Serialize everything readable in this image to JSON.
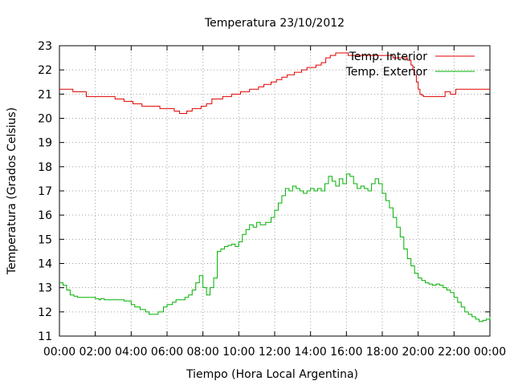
{
  "chart_data": {
    "type": "line",
    "title": "Temperatura 23/10/2012",
    "xlabel": "Tiempo (Hora Local Argentina)",
    "ylabel": "Temperatura (Grados Celsius)",
    "x_unit": "hours",
    "xlim": [
      0,
      24
    ],
    "ylim": [
      11,
      23
    ],
    "x_tick_labels": [
      "00:00",
      "02:00",
      "04:00",
      "06:00",
      "08:00",
      "10:00",
      "12:00",
      "14:00",
      "16:00",
      "18:00",
      "20:00",
      "22:00",
      "00:00"
    ],
    "y_ticks": [
      11,
      12,
      13,
      14,
      15,
      16,
      17,
      18,
      19,
      20,
      21,
      22,
      23
    ],
    "grid": true,
    "legend_position": "top-right",
    "series": [
      {
        "name": "Temp. Interior",
        "color": "#e00000",
        "x": [
          0,
          0.7,
          0.75,
          1.4,
          1.5,
          3.0,
          3.1,
          3.5,
          3.6,
          4.0,
          4.1,
          4.5,
          4.6,
          5.5,
          5.6,
          6.3,
          6.4,
          6.6,
          6.7,
          7.0,
          7.1,
          7.3,
          7.4,
          7.8,
          7.9,
          8.1,
          8.2,
          8.4,
          8.5,
          9.0,
          9.1,
          9.5,
          9.6,
          10.0,
          10.1,
          10.5,
          10.6,
          11.0,
          11.1,
          11.3,
          11.4,
          11.7,
          11.8,
          12.0,
          12.1,
          12.3,
          12.4,
          12.6,
          12.7,
          13.0,
          13.1,
          13.4,
          13.5,
          13.7,
          13.8,
          14.2,
          14.3,
          14.5,
          14.6,
          14.8,
          14.85,
          15.0,
          15.1,
          15.3,
          15.4,
          16.0,
          16.1,
          18.5,
          18.6,
          19.3,
          19.4,
          19.5,
          19.6,
          19.7,
          19.8,
          19.9,
          20.0,
          20.1,
          20.2,
          20.3,
          20.4,
          21.4,
          21.5,
          21.7,
          21.8,
          22.0,
          22.1,
          22.2,
          22.3,
          24.0
        ],
        "values": [
          21.2,
          21.2,
          21.1,
          21.1,
          20.9,
          20.9,
          20.8,
          20.8,
          20.7,
          20.7,
          20.6,
          20.6,
          20.5,
          20.5,
          20.4,
          20.4,
          20.3,
          20.3,
          20.2,
          20.2,
          20.3,
          20.3,
          20.4,
          20.4,
          20.5,
          20.5,
          20.6,
          20.6,
          20.8,
          20.8,
          20.9,
          20.9,
          21.0,
          21.0,
          21.1,
          21.1,
          21.2,
          21.2,
          21.3,
          21.3,
          21.4,
          21.4,
          21.5,
          21.5,
          21.6,
          21.6,
          21.7,
          21.7,
          21.8,
          21.8,
          21.9,
          21.9,
          22.0,
          22.0,
          22.1,
          22.1,
          22.2,
          22.2,
          22.3,
          22.3,
          22.5,
          22.5,
          22.6,
          22.6,
          22.7,
          22.7,
          22.6,
          22.6,
          22.5,
          22.5,
          22.4,
          22.4,
          22.2,
          22.0,
          21.8,
          21.5,
          21.2,
          21.0,
          20.95,
          20.9,
          20.9,
          20.9,
          21.1,
          21.1,
          21.0,
          21.0,
          21.2,
          21.2,
          21.2,
          21.2
        ]
      },
      {
        "name": "Temp. Exterior",
        "color": "#00b000",
        "x": [
          0,
          0.2,
          0.4,
          0.6,
          0.8,
          1.0,
          1.5,
          2.0,
          2.2,
          2.3,
          2.5,
          3.0,
          3.5,
          3.6,
          4.0,
          4.2,
          4.5,
          4.8,
          5.0,
          5.2,
          5.5,
          5.8,
          6.0,
          6.3,
          6.5,
          6.8,
          7.0,
          7.2,
          7.4,
          7.6,
          7.8,
          8.0,
          8.2,
          8.4,
          8.6,
          8.8,
          9.0,
          9.2,
          9.4,
          9.6,
          9.8,
          10.0,
          10.2,
          10.4,
          10.6,
          10.8,
          11.0,
          11.2,
          11.5,
          11.8,
          12.0,
          12.2,
          12.4,
          12.6,
          12.8,
          13.0,
          13.2,
          13.4,
          13.6,
          13.8,
          14.0,
          14.2,
          14.4,
          14.6,
          14.8,
          15.0,
          15.2,
          15.4,
          15.6,
          15.8,
          16.0,
          16.2,
          16.4,
          16.6,
          16.8,
          17.0,
          17.2,
          17.4,
          17.6,
          17.8,
          18.0,
          18.2,
          18.4,
          18.6,
          18.8,
          19.0,
          19.2,
          19.4,
          19.6,
          19.8,
          20.0,
          20.2,
          20.4,
          20.6,
          20.8,
          21.0,
          21.2,
          21.4,
          21.6,
          21.8,
          22.0,
          22.2,
          22.4,
          22.6,
          22.8,
          23.0,
          23.2,
          23.4,
          23.6,
          23.8,
          24.0
        ],
        "values": [
          13.2,
          13.1,
          12.9,
          12.7,
          12.65,
          12.6,
          12.6,
          12.55,
          12.5,
          12.55,
          12.5,
          12.5,
          12.5,
          12.45,
          12.3,
          12.2,
          12.1,
          12.0,
          11.9,
          11.9,
          12.0,
          12.2,
          12.3,
          12.4,
          12.5,
          12.5,
          12.6,
          12.7,
          12.9,
          13.2,
          13.5,
          13.0,
          12.7,
          13.0,
          13.4,
          14.5,
          14.6,
          14.7,
          14.75,
          14.8,
          14.7,
          14.9,
          15.2,
          15.4,
          15.6,
          15.5,
          15.7,
          15.6,
          15.7,
          15.9,
          16.2,
          16.5,
          16.8,
          17.1,
          17.0,
          17.2,
          17.1,
          17.0,
          16.9,
          17.0,
          17.1,
          17.0,
          17.1,
          17.0,
          17.3,
          17.6,
          17.4,
          17.2,
          17.5,
          17.3,
          17.7,
          17.6,
          17.3,
          17.1,
          17.2,
          17.1,
          17.0,
          17.3,
          17.5,
          17.3,
          16.9,
          16.6,
          16.3,
          15.9,
          15.5,
          15.1,
          14.6,
          14.2,
          13.9,
          13.6,
          13.4,
          13.3,
          13.2,
          13.15,
          13.1,
          13.15,
          13.1,
          13.0,
          12.9,
          12.8,
          12.6,
          12.4,
          12.2,
          12.0,
          11.9,
          11.8,
          11.7,
          11.6,
          11.65,
          11.7,
          11.8
        ]
      }
    ]
  }
}
